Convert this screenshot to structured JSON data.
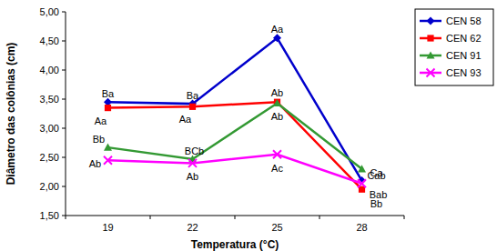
{
  "chart_data": {
    "type": "line",
    "x_label": "Temperatura (°C)",
    "y_label": "Diâmetro das colônias (cm)",
    "categories": [
      "19",
      "22",
      "25",
      "28"
    ],
    "ylim": [
      1.5,
      5.0
    ],
    "yticks": [
      {
        "value": 1.5,
        "label": "1,50"
      },
      {
        "value": 2.0,
        "label": "2,00"
      },
      {
        "value": 2.5,
        "label": "2,50"
      },
      {
        "value": 3.0,
        "label": "3,00"
      },
      {
        "value": 3.5,
        "label": "3,50"
      },
      {
        "value": 4.0,
        "label": "4,00"
      },
      {
        "value": 4.5,
        "label": "4,50"
      },
      {
        "value": 5.0,
        "label": "5,00"
      }
    ],
    "grid": false,
    "legend": "right",
    "series": [
      {
        "name": "CEN 58",
        "color": "#0000cc",
        "marker": "diamond",
        "values": [
          3.45,
          3.42,
          4.55,
          2.1
        ],
        "point_labels": [
          "Ba",
          "Ba",
          "Aa",
          "Ca"
        ]
      },
      {
        "name": "CEN 62",
        "color": "#ff0000",
        "marker": "square",
        "values": [
          3.35,
          3.37,
          3.45,
          1.95
        ],
        "point_labels": [
          "Aa",
          "Aa",
          "Ab",
          "Bb"
        ]
      },
      {
        "name": "CEN 91",
        "color": "#339933",
        "marker": "triangle",
        "values": [
          2.67,
          2.47,
          3.43,
          2.3
        ],
        "point_labels": [
          "Bb",
          "BCb",
          "Ab",
          "Cab"
        ]
      },
      {
        "name": "CEN 93",
        "color": "#ff00ff",
        "marker": "x",
        "values": [
          2.45,
          2.4,
          2.55,
          2.05
        ],
        "point_labels": [
          "Ab",
          "Ab",
          "Ac",
          "Bab"
        ]
      }
    ]
  }
}
